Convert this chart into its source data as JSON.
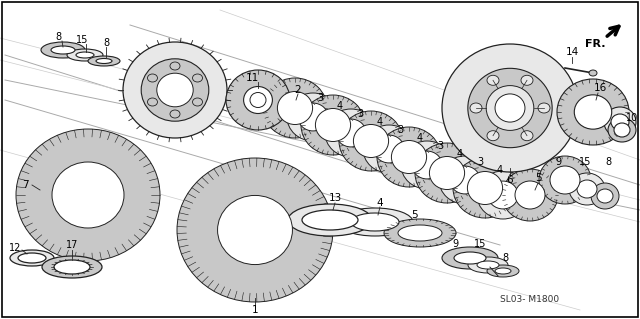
{
  "bg_color": "#ffffff",
  "border_color": "#000000",
  "diagram_code": "SL03- M1800",
  "text_color": "#000000",
  "outline_color": "#222222",
  "fill_light": "#e8e8e8",
  "fill_mid": "#c8c8c8",
  "fill_dark": "#a0a0a0",
  "fig_w": 6.4,
  "fig_h": 3.19
}
